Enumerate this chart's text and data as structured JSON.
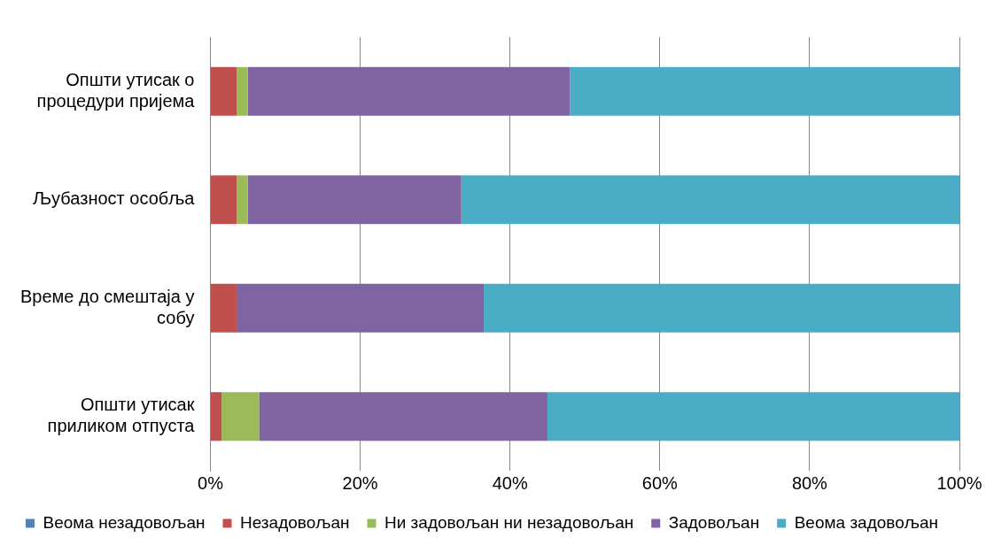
{
  "chart_data": {
    "type": "bar",
    "orientation": "horizontal",
    "stacked": true,
    "categories": [
      "Општи утисак о процедури пријема",
      "Љубазност особља",
      "Време до смештаја у собу",
      "Општи утисак приликом отпуста"
    ],
    "series": [
      {
        "name": "Веома незадовољан",
        "color": "#4f81bd",
        "values": [
          0,
          0,
          0,
          0
        ]
      },
      {
        "name": "Незадовољан",
        "color": "#c0504d",
        "values": [
          3.5,
          3.5,
          3.5,
          1.5
        ]
      },
      {
        "name": "Ни задовољан ни незадовољан",
        "color": "#9bbb59",
        "values": [
          1.5,
          1.5,
          0,
          5
        ]
      },
      {
        "name": "Задовољан",
        "color": "#8064a2",
        "values": [
          43,
          28.5,
          33,
          38.5
        ]
      },
      {
        "name": "Веома задовољан",
        "color": "#4bacc6",
        "values": [
          52,
          66.5,
          63.5,
          55
        ]
      }
    ],
    "xlim": [
      0,
      100
    ],
    "xticks": [
      {
        "value": 0,
        "label": "0%"
      },
      {
        "value": 20,
        "label": "20%"
      },
      {
        "value": 40,
        "label": "40%"
      },
      {
        "value": 60,
        "label": "60%"
      },
      {
        "value": 80,
        "label": "80%"
      },
      {
        "value": 100,
        "label": "100%"
      }
    ],
    "grid": "x",
    "legend": "bottom"
  }
}
